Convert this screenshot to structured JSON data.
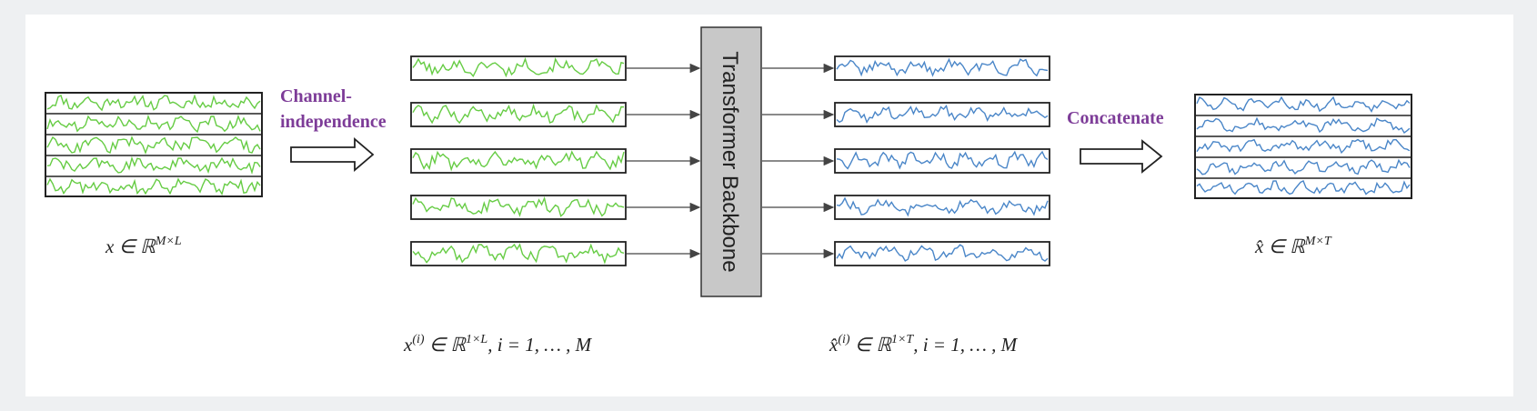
{
  "labels": {
    "channel_independence": [
      "Channel-",
      "independence"
    ],
    "concatenate": "Concatenate",
    "backbone": "Transformer Backbone"
  },
  "math": {
    "input": "x ∈ ℝ^{M×L}",
    "output": "x̂ ∈ ℝ^{M×T}",
    "channel_input": "x^{(i)} ∈ ℝ^{1×L}, i = 1, … , M",
    "channel_output": "x̂^{(i)} ∈ ℝ^{1×T}, i = 1, … , M"
  },
  "display": {
    "input": [
      "x ∈ ℝ",
      "M×L"
    ],
    "output": [
      "x̂ ∈ ℝ",
      "M×T"
    ],
    "channel_input": [
      "x",
      "(i)",
      " ∈ ℝ",
      "1×L",
      ", i = 1, … , M"
    ],
    "channel_output": [
      "x̂",
      "(i)",
      " ∈ ℝ",
      "1×T",
      ", i = 1, … , M"
    ]
  },
  "colors": {
    "input_series": "#66cc44",
    "output_series": "#4a86c8",
    "label_purple": "#7d3c98",
    "backbone_fill": "#c8c8c8",
    "frame": "#222222"
  },
  "channels": 5,
  "icons": [
    "right-arrow-icon"
  ]
}
